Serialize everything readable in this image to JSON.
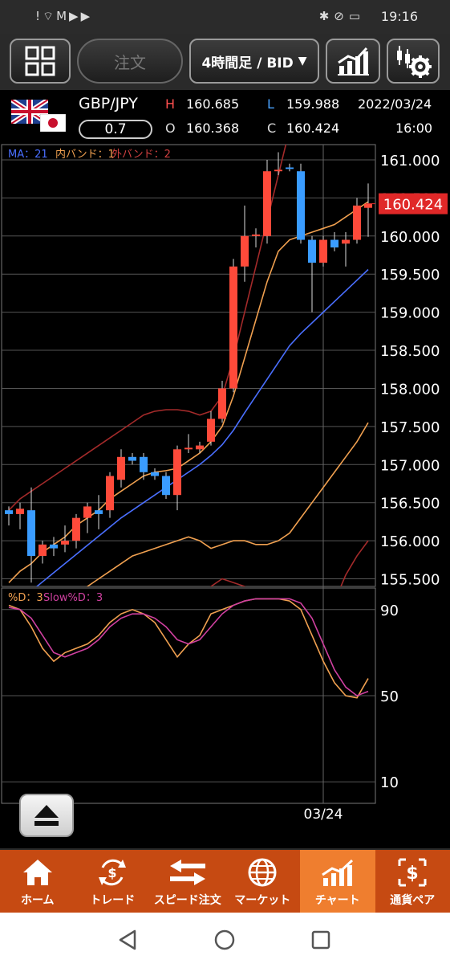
{
  "status_bar": {
    "time": "19:16",
    "left_icons": "!⌔M▶▶",
    "right_icons": "✱⊘▭"
  },
  "toolbar": {
    "order_label": "注文",
    "period_label": "4時間足 / BID"
  },
  "quote": {
    "symbol": "GBP/JPY",
    "spread": "0.7",
    "high_label": "H",
    "high": "160.685",
    "low_label": "L",
    "low": "159.988",
    "open_label": "O",
    "open": "160.368",
    "close_label": "C",
    "close": "160.424",
    "date": "2022/03/24",
    "time": "16:00"
  },
  "chart_data": {
    "type": "candlestick",
    "legend": [
      {
        "text": "MA：21",
        "color": "#4a6fff"
      },
      {
        "text": "内バンド：1",
        "color": "#f0a050"
      },
      {
        "text": "外バンド：2",
        "color": "#d04040"
      }
    ],
    "price_ticks": [
      "161.000",
      "160.500",
      "160.000",
      "159.500",
      "159.000",
      "158.500",
      "158.000",
      "157.500",
      "157.000",
      "156.500",
      "156.000",
      "155.500"
    ],
    "ylim": [
      155.4,
      161.2
    ],
    "current_price": "160.424",
    "x_label": "03/24",
    "candles": [
      [
        156.4,
        156.45,
        156.2,
        156.35
      ],
      [
        156.35,
        156.5,
        156.15,
        156.42
      ],
      [
        156.4,
        156.7,
        155.45,
        155.8
      ],
      [
        155.8,
        156.0,
        155.7,
        155.95
      ],
      [
        155.95,
        156.05,
        155.8,
        155.9
      ],
      [
        155.95,
        156.2,
        155.85,
        156.0
      ],
      [
        156.0,
        156.35,
        155.9,
        156.3
      ],
      [
        156.3,
        156.5,
        156.1,
        156.45
      ],
      [
        156.4,
        156.6,
        156.15,
        156.35
      ],
      [
        156.4,
        156.9,
        156.3,
        156.85
      ],
      [
        156.8,
        157.2,
        156.7,
        157.1
      ],
      [
        157.1,
        157.15,
        157.0,
        157.05
      ],
      [
        157.1,
        157.15,
        156.8,
        156.9
      ],
      [
        156.9,
        156.95,
        156.8,
        156.85
      ],
      [
        156.85,
        156.9,
        156.55,
        156.6
      ],
      [
        156.6,
        157.25,
        156.4,
        157.2
      ],
      [
        157.2,
        157.4,
        157.15,
        157.22
      ],
      [
        157.2,
        157.3,
        157.15,
        157.25
      ],
      [
        157.3,
        157.7,
        157.25,
        157.6
      ],
      [
        157.6,
        158.1,
        157.55,
        158.0
      ],
      [
        158.0,
        159.7,
        157.95,
        159.6
      ],
      [
        159.6,
        160.4,
        159.4,
        160.0
      ],
      [
        160.0,
        160.1,
        159.85,
        160.02
      ],
      [
        160.0,
        161.0,
        159.9,
        160.85
      ],
      [
        160.85,
        161.1,
        160.8,
        160.87
      ],
      [
        160.9,
        160.95,
        160.85,
        160.88
      ],
      [
        160.85,
        160.95,
        159.9,
        159.95
      ],
      [
        159.95,
        160.0,
        159.0,
        159.65
      ],
      [
        159.65,
        160.0,
        159.6,
        159.95
      ],
      [
        159.95,
        160.05,
        159.8,
        159.85
      ],
      [
        159.9,
        160.05,
        159.6,
        159.95
      ],
      [
        159.95,
        160.5,
        159.9,
        160.4
      ],
      [
        160.37,
        160.69,
        159.99,
        160.42
      ]
    ],
    "ma": [
      155.1,
      155.22,
      155.34,
      155.46,
      155.58,
      155.7,
      155.82,
      155.94,
      156.06,
      156.18,
      156.3,
      156.4,
      156.5,
      156.6,
      156.7,
      156.8,
      156.9,
      157.0,
      157.12,
      157.26,
      157.45,
      157.68,
      157.9,
      158.12,
      158.34,
      158.56,
      158.72,
      158.86,
      159.0,
      159.14,
      159.28,
      159.42,
      159.56
    ],
    "band_upper1": [
      155.45,
      155.6,
      155.7,
      155.85,
      155.95,
      156.05,
      156.2,
      156.3,
      156.4,
      156.55,
      156.65,
      156.75,
      156.85,
      156.9,
      156.92,
      156.95,
      157.05,
      157.15,
      157.3,
      157.5,
      157.9,
      158.4,
      158.9,
      159.4,
      159.8,
      159.95,
      160.0,
      160.05,
      160.1,
      160.15,
      160.25,
      160.35,
      160.45
    ],
    "band_lower1": [
      154.7,
      154.8,
      154.9,
      155.0,
      155.1,
      155.2,
      155.3,
      155.4,
      155.5,
      155.6,
      155.7,
      155.8,
      155.85,
      155.9,
      155.95,
      156.0,
      156.05,
      156.0,
      155.9,
      155.95,
      156.0,
      156.0,
      155.95,
      155.95,
      156.0,
      156.1,
      156.3,
      156.5,
      156.7,
      156.9,
      157.1,
      157.3,
      157.55
    ],
    "band_upper2": [
      156.4,
      156.55,
      156.65,
      156.75,
      156.85,
      156.95,
      157.05,
      157.15,
      157.25,
      157.35,
      157.45,
      157.55,
      157.65,
      157.7,
      157.72,
      157.72,
      157.7,
      157.65,
      157.7,
      157.9,
      158.4,
      159.0,
      159.6,
      160.2,
      160.8,
      161.4,
      162.0,
      162.5,
      163.0,
      163.4,
      163.8,
      164.2,
      164.6
    ],
    "band_lower2": [
      153.6,
      153.7,
      153.8,
      153.9,
      154.0,
      154.1,
      154.2,
      154.3,
      154.4,
      154.5,
      154.6,
      154.7,
      154.8,
      154.9,
      155.0,
      155.1,
      155.2,
      155.3,
      155.4,
      155.5,
      155.45,
      155.4,
      155.0,
      154.5,
      154.2,
      154.0,
      154.1,
      154.4,
      154.8,
      155.2,
      155.55,
      155.8,
      156.0
    ],
    "stoch_legend": [
      {
        "text": "%D：3",
        "color": "#f0a050"
      },
      {
        "text": "Slow%D：3",
        "color": "#d040a0"
      }
    ],
    "stoch_ticks": [
      "90",
      "50",
      "10"
    ],
    "stoch_ylim": [
      0,
      100
    ],
    "stoch_d": [
      92,
      90,
      82,
      72,
      66,
      70,
      72,
      74,
      78,
      84,
      88,
      90,
      88,
      84,
      76,
      68,
      74,
      78,
      88,
      90,
      92,
      94,
      95,
      95,
      95,
      94,
      90,
      78,
      66,
      56,
      50,
      49,
      58
    ],
    "stoch_slow": [
      91,
      90,
      86,
      78,
      70,
      68,
      70,
      72,
      76,
      82,
      86,
      88,
      88,
      86,
      82,
      76,
      74,
      76,
      82,
      88,
      92,
      94,
      95,
      95,
      95,
      95,
      93,
      86,
      74,
      62,
      54,
      50,
      52
    ]
  },
  "bottom_nav": [
    {
      "label": "ホーム"
    },
    {
      "label": "トレード"
    },
    {
      "label": "スピード注文"
    },
    {
      "label": "マーケット"
    },
    {
      "label": "チャート"
    },
    {
      "label": "通貨ペア"
    }
  ]
}
